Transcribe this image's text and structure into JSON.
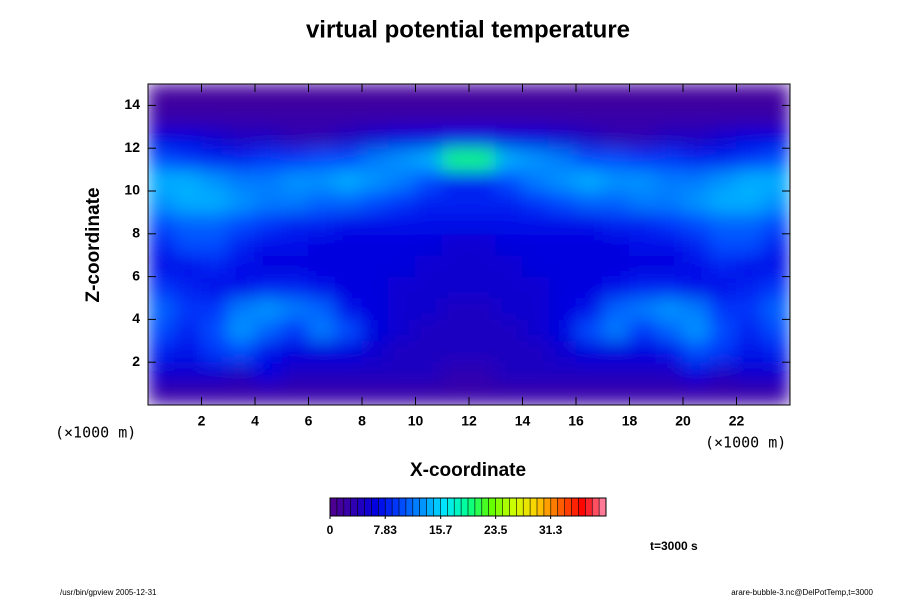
{
  "chart_data": {
    "type": "heatmap",
    "title": "virtual potential temperature",
    "xlabel": "X-coordinate",
    "ylabel": "Z-coordinate",
    "xunit": "(×1000 m)",
    "yunit": "(×1000 m)",
    "annotation": "t=3000 s",
    "footer_left": "/usr/bin/gpview 2005-12-31",
    "footer_right": "arare-bubble-3.nc@DelPotTemp,t=3000",
    "xlim": [
      0,
      24
    ],
    "ylim": [
      0,
      15
    ],
    "xticks": [
      2,
      4,
      6,
      8,
      10,
      12,
      14,
      16,
      18,
      20,
      22
    ],
    "yticks": [
      2,
      4,
      6,
      8,
      10,
      12,
      14
    ],
    "clim": [
      0,
      39.15
    ],
    "cticks": [
      0,
      7.83,
      15.7,
      23.5,
      31.3
    ],
    "colormap": [
      "#50008c",
      "#3000b0",
      "#0000e0",
      "#0040ff",
      "#0090ff",
      "#00e8ff",
      "#00ff90",
      "#60ff00",
      "#d0ff00",
      "#ffd000",
      "#ff6000",
      "#ff0000",
      "#ff90b0"
    ],
    "x": [
      0.5,
      1.5,
      2.5,
      3.5,
      4.5,
      5.5,
      6.5,
      7.5,
      8.5,
      9.5,
      10.5,
      11.5,
      12.5,
      13.5,
      14.5,
      15.5,
      16.5,
      17.5,
      18.5,
      19.5,
      20.5,
      21.5,
      22.5,
      23.5
    ],
    "y": [
      0.5,
      1.5,
      2.5,
      3.5,
      4.5,
      5.5,
      6.5,
      7.5,
      8.5,
      9.5,
      10.5,
      11.5,
      12.5,
      13.5,
      14.5
    ],
    "z": [
      [
        2,
        2,
        2,
        2,
        2,
        2,
        2,
        2,
        2,
        2,
        2,
        2,
        2,
        2,
        2,
        2,
        2,
        2,
        2,
        2,
        2,
        2,
        2,
        2
      ],
      [
        5,
        5,
        5,
        4,
        6,
        4,
        4,
        4,
        4,
        4,
        4,
        3,
        3,
        4,
        4,
        4,
        4,
        4,
        4,
        4,
        6,
        4,
        5,
        5
      ],
      [
        8,
        7,
        9,
        10,
        7,
        6,
        6,
        6,
        5,
        4,
        4,
        4,
        4,
        4,
        4,
        5,
        6,
        6,
        6,
        7,
        10,
        9,
        7,
        8
      ],
      [
        10,
        8,
        10,
        13,
        11,
        9,
        12,
        10,
        6,
        5,
        4,
        4,
        4,
        4,
        5,
        6,
        10,
        12,
        9,
        11,
        13,
        10,
        8,
        10
      ],
      [
        11,
        9,
        9,
        12,
        13,
        12,
        11,
        7,
        6,
        5,
        5,
        4,
        4,
        5,
        5,
        6,
        7,
        11,
        12,
        13,
        12,
        9,
        9,
        11
      ],
      [
        9,
        8,
        7,
        7,
        8,
        8,
        7,
        6,
        6,
        5,
        5,
        5,
        5,
        5,
        5,
        6,
        6,
        7,
        8,
        8,
        7,
        7,
        8,
        9
      ],
      [
        7,
        7,
        8,
        7,
        6,
        6,
        6,
        6,
        6,
        6,
        5,
        5,
        5,
        5,
        6,
        6,
        6,
        6,
        6,
        6,
        7,
        8,
        7,
        7
      ],
      [
        8,
        10,
        10,
        8,
        7,
        7,
        6,
        6,
        6,
        6,
        6,
        5,
        5,
        6,
        6,
        6,
        6,
        6,
        7,
        7,
        8,
        10,
        10,
        8
      ],
      [
        10,
        11,
        11,
        10,
        9,
        8,
        8,
        7,
        7,
        7,
        7,
        7,
        7,
        7,
        7,
        7,
        7,
        8,
        8,
        9,
        10,
        11,
        11,
        10
      ],
      [
        13,
        14,
        14,
        13,
        12,
        12,
        11,
        11,
        10,
        9,
        8,
        8,
        8,
        8,
        9,
        10,
        11,
        11,
        12,
        12,
        13,
        14,
        14,
        13
      ],
      [
        14,
        14,
        13,
        12,
        12,
        13,
        13,
        14,
        13,
        12,
        10,
        8,
        8,
        10,
        12,
        13,
        14,
        13,
        13,
        12,
        12,
        13,
        14,
        14
      ],
      [
        10,
        9,
        8,
        8,
        9,
        9,
        10,
        10,
        12,
        13,
        14,
        20,
        20,
        14,
        13,
        12,
        10,
        10,
        9,
        9,
        8,
        8,
        9,
        10
      ],
      [
        6,
        6,
        5,
        4,
        4,
        3,
        3,
        4,
        5,
        6,
        6,
        7,
        7,
        6,
        6,
        5,
        4,
        3,
        3,
        4,
        4,
        5,
        6,
        6
      ],
      [
        2,
        2,
        2,
        2,
        2,
        2,
        2,
        2,
        2,
        2,
        2,
        2,
        2,
        2,
        2,
        2,
        2,
        2,
        2,
        2,
        2,
        2,
        2,
        2
      ],
      [
        1,
        1,
        1,
        1,
        1,
        1,
        1,
        1,
        1,
        1,
        1,
        1,
        1,
        1,
        1,
        1,
        1,
        1,
        1,
        1,
        1,
        1,
        1,
        1
      ]
    ]
  }
}
